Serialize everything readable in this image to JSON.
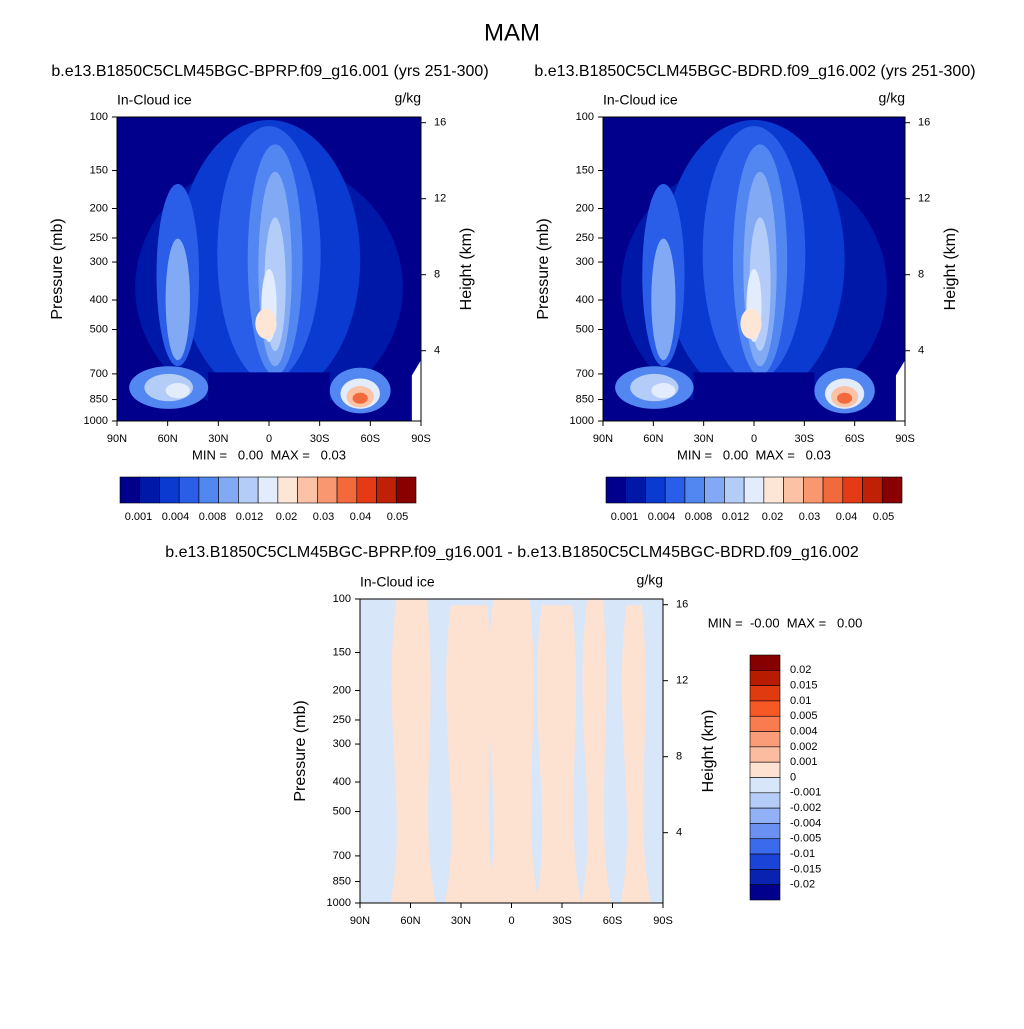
{
  "title": "MAM",
  "chart_data": [
    {
      "type": "contour",
      "title": "b.e13.B1850C5CLM45BGC-BPRP.f09_g16.001 (yrs 251-300)",
      "left_label": "In-Cloud ice",
      "right_label": "g/kg",
      "ylabel": "Pressure (mb)",
      "y2label": "Height (km)",
      "stats": "MIN =   0.00  MAX =   0.03",
      "xlim": [
        90,
        -90
      ],
      "xticks": [
        {
          "value": 90,
          "label": "90N"
        },
        {
          "value": 60,
          "label": "60N"
        },
        {
          "value": 30,
          "label": "30N"
        },
        0,
        {
          "value": -30,
          "label": "30S"
        },
        {
          "value": -60,
          "label": "60S"
        },
        {
          "value": -90,
          "label": "90S"
        }
      ],
      "ylim": [
        1000,
        100
      ],
      "log_y": true,
      "yticks": [
        100,
        150,
        200,
        250,
        300,
        400,
        500,
        700,
        850,
        1000
      ],
      "y2lim": [
        0.3,
        16.3
      ],
      "y2ticks": [
        4,
        8,
        12,
        16
      ],
      "colorbar": {
        "orientation": "horizontal",
        "labels": [
          0.001,
          0.004,
          0.008,
          0.012,
          0.02,
          0.03,
          0.04,
          0.05
        ],
        "colors": [
          "#00008c",
          "#0018a8",
          "#0a3ad0",
          "#2a5ee8",
          "#5286f0",
          "#82aaf4",
          "#b4ccf8",
          "#e2ecfc",
          "#fde6d6",
          "#fcc2a6",
          "#f89770",
          "#f26a3c",
          "#e43a16",
          "#c02006",
          "#8a0000"
        ]
      }
    },
    {
      "type": "contour",
      "title": "b.e13.B1850C5CLM45BGC-BDRD.f09_g16.002 (yrs 251-300)",
      "left_label": "In-Cloud ice",
      "right_label": "g/kg",
      "ylabel": "Pressure (mb)",
      "y2label": "Height (km)",
      "stats": "MIN =   0.00  MAX =   0.03",
      "xlim": [
        90,
        -90
      ],
      "xticks": [
        {
          "value": 90,
          "label": "90N"
        },
        {
          "value": 60,
          "label": "60N"
        },
        {
          "value": 30,
          "label": "30N"
        },
        0,
        {
          "value": -30,
          "label": "30S"
        },
        {
          "value": -60,
          "label": "60S"
        },
        {
          "value": -90,
          "label": "90S"
        }
      ],
      "ylim": [
        1000,
        100
      ],
      "log_y": true,
      "yticks": [
        100,
        150,
        200,
        250,
        300,
        400,
        500,
        700,
        850,
        1000
      ],
      "y2lim": [
        0.3,
        16.3
      ],
      "y2ticks": [
        4,
        8,
        12,
        16
      ],
      "colorbar": {
        "orientation": "horizontal",
        "labels": [
          0.001,
          0.004,
          0.008,
          0.012,
          0.02,
          0.03,
          0.04,
          0.05
        ],
        "colors": [
          "#00008c",
          "#0018a8",
          "#0a3ad0",
          "#2a5ee8",
          "#5286f0",
          "#82aaf4",
          "#b4ccf8",
          "#e2ecfc",
          "#fde6d6",
          "#fcc2a6",
          "#f89770",
          "#f26a3c",
          "#e43a16",
          "#c02006",
          "#8a0000"
        ]
      }
    },
    {
      "type": "contour-diff",
      "title": "b.e13.B1850C5CLM45BGC-BPRP.f09_g16.001 - b.e13.B1850C5CLM45BGC-BDRD.f09_g16.002",
      "left_label": "In-Cloud ice",
      "right_label": "g/kg",
      "ylabel": "Pressure (mb)",
      "y2label": "Height (km)",
      "stats": "MIN =  -0.00  MAX =   0.00",
      "xlim": [
        90,
        -90
      ],
      "xticks": [
        {
          "value": 90,
          "label": "90N"
        },
        {
          "value": 60,
          "label": "60N"
        },
        {
          "value": 30,
          "label": "30N"
        },
        0,
        {
          "value": -30,
          "label": "30S"
        },
        {
          "value": -60,
          "label": "60S"
        },
        {
          "value": -90,
          "label": "90S"
        }
      ],
      "ylim": [
        1000,
        100
      ],
      "log_y": true,
      "yticks": [
        100,
        150,
        200,
        250,
        300,
        400,
        500,
        700,
        850,
        1000
      ],
      "y2lim": [
        0.3,
        16.3
      ],
      "y2ticks": [
        4,
        8,
        12,
        16
      ],
      "colorbar": {
        "orientation": "vertical",
        "labels": [
          0.02,
          0.015,
          0.01,
          0.005,
          0.004,
          0.002,
          0.001,
          0,
          -0.001,
          -0.002,
          -0.004,
          -0.005,
          -0.01,
          -0.015,
          -0.02
        ],
        "colors": [
          "#860000",
          "#b81c00",
          "#e03a10",
          "#f65826",
          "#f87c50",
          "#fa9c78",
          "#fcbca0",
          "#fde2d2",
          "#d8e6fa",
          "#b6ccf8",
          "#92b0f6",
          "#6a90f2",
          "#3c6aec",
          "#1a44d8",
          "#0a22b0",
          "#00008c"
        ]
      }
    }
  ]
}
